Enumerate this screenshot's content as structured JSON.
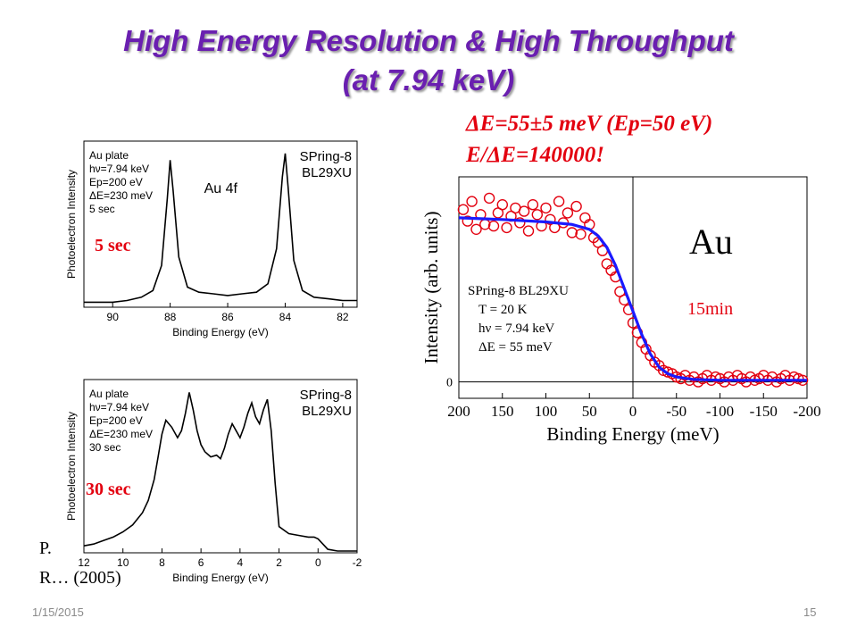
{
  "slide": {
    "title_line1": "High Energy Resolution & High Throughput",
    "title_line2": "(at 7.94 keV)",
    "resolution_line1": "ΔE=55±5 meV (Ep=50 eV)",
    "resolution_line2": "E/ΔE=140000!",
    "date": "1/15/2015",
    "page_number": "15",
    "reference_line1": "P.",
    "reference_line2": "R… (2005)"
  },
  "colors": {
    "title": "#6a1fb0",
    "highlight": "#e3000f",
    "fit_line": "#1a1aff",
    "data_points": "#e3000f"
  },
  "chart_data": [
    {
      "type": "line",
      "panel": "top-left",
      "overlay_label": "5 sec",
      "ylabel": "Photoelectron Intensity",
      "xlabel": "Binding Energy (eV)",
      "annotation_left": [
        "Au plate",
        "hν=7.94 keV",
        "Ep=200 eV",
        "ΔE=230 meV",
        "5 sec"
      ],
      "annotation_right": [
        "SPring-8",
        "BL29XU"
      ],
      "peak_label": "Au 4f",
      "xlim": [
        91,
        81.5
      ],
      "x_ticks": [
        "90",
        "88",
        "86",
        "84",
        "82"
      ],
      "x": [
        91,
        90,
        89.5,
        89,
        88.6,
        88.3,
        88.1,
        88.0,
        87.9,
        87.7,
        87.4,
        87,
        86.5,
        86,
        85.5,
        85,
        84.6,
        84.3,
        84.1,
        84.0,
        83.9,
        83.7,
        83.4,
        83,
        82.5,
        82,
        81.5
      ],
      "values": [
        3,
        3,
        4,
        6,
        10,
        25,
        65,
        88,
        70,
        30,
        12,
        9,
        8,
        7,
        8,
        9,
        14,
        35,
        78,
        92,
        72,
        28,
        10,
        6,
        5,
        4,
        4
      ]
    },
    {
      "type": "line",
      "panel": "bottom-left",
      "overlay_label": "30 sec",
      "ylabel": "Photoelectron Intensity",
      "xlabel": "Binding Energy (eV)",
      "annotation_left": [
        "Au plate",
        "hν=7.94 keV",
        "Ep=200 eV",
        "ΔE=230 meV",
        "30 sec"
      ],
      "annotation_right": [
        "SPring-8",
        "BL29XU"
      ],
      "xlim": [
        12,
        -2
      ],
      "x_ticks": [
        "12",
        "10",
        "8",
        "6",
        "4",
        "2",
        "0",
        "-2"
      ],
      "x": [
        12,
        11.5,
        11,
        10.5,
        10,
        9.5,
        9,
        8.7,
        8.4,
        8.2,
        8,
        7.8,
        7.5,
        7.2,
        7,
        6.8,
        6.6,
        6.4,
        6.2,
        6,
        5.8,
        5.5,
        5.2,
        5,
        4.8,
        4.6,
        4.4,
        4.2,
        4,
        3.8,
        3.6,
        3.4,
        3.2,
        3,
        2.8,
        2.6,
        2.4,
        2.2,
        2,
        1.5,
        1,
        0.5,
        0.2,
        0,
        -0.5,
        -1,
        -1.5,
        -2
      ],
      "values": [
        4,
        5,
        7,
        9,
        12,
        16,
        23,
        30,
        42,
        55,
        68,
        76,
        72,
        66,
        70,
        80,
        92,
        82,
        70,
        62,
        58,
        55,
        56,
        54,
        60,
        68,
        74,
        70,
        66,
        72,
        80,
        86,
        78,
        74,
        82,
        88,
        70,
        40,
        15,
        11,
        10,
        9,
        9,
        8,
        2,
        1,
        1,
        1
      ]
    },
    {
      "type": "scatter",
      "panel": "right",
      "material_label": "Au",
      "time_label": "15min",
      "ylabel": "Intensity (arb. units)",
      "xlabel": "Binding Energy (meV)",
      "annotation": [
        "SPring-8 BL29XU",
        "T = 20 K",
        "hν = 7.94 keV",
        "ΔE = 55 meV"
      ],
      "y_zero_label": "0",
      "xlim": [
        200,
        -200
      ],
      "ylim": [
        -0.1,
        1.25
      ],
      "x_ticks": [
        "200",
        "150",
        "100",
        "50",
        "0",
        "-50",
        "-100",
        "-150",
        "-200"
      ],
      "fit_x": [
        200,
        150,
        100,
        70,
        50,
        40,
        30,
        20,
        10,
        0,
        -10,
        -20,
        -30,
        -40,
        -50,
        -70,
        -100,
        -150,
        -200
      ],
      "fit_y": [
        1.0,
        0.99,
        0.975,
        0.96,
        0.93,
        0.89,
        0.82,
        0.71,
        0.57,
        0.43,
        0.29,
        0.17,
        0.09,
        0.05,
        0.03,
        0.015,
        0.01,
        0.01,
        0.01
      ],
      "points_x": [
        195,
        190,
        185,
        180,
        175,
        170,
        165,
        160,
        155,
        150,
        145,
        140,
        135,
        130,
        125,
        120,
        115,
        110,
        105,
        100,
        95,
        90,
        85,
        80,
        75,
        70,
        65,
        60,
        55,
        50,
        45,
        40,
        35,
        30,
        25,
        20,
        15,
        10,
        5,
        0,
        -5,
        -10,
        -15,
        -20,
        -25,
        -30,
        -35,
        -40,
        -45,
        -50,
        -55,
        -60,
        -65,
        -70,
        -75,
        -80,
        -85,
        -90,
        -95,
        -100,
        -105,
        -110,
        -115,
        -120,
        -125,
        -130,
        -135,
        -140,
        -145,
        -150,
        -155,
        -160,
        -165,
        -170,
        -175,
        -180,
        -185,
        -190,
        -195
      ],
      "points_y": [
        1.05,
        0.98,
        1.1,
        0.93,
        1.02,
        0.96,
        1.12,
        0.95,
        1.03,
        1.08,
        0.94,
        1.01,
        1.06,
        0.97,
        1.04,
        0.92,
        1.08,
        1.02,
        0.95,
        1.06,
        0.99,
        0.94,
        1.1,
        0.97,
        1.03,
        0.91,
        1.07,
        0.9,
        1.0,
        0.96,
        0.88,
        0.85,
        0.8,
        0.72,
        0.68,
        0.64,
        0.55,
        0.5,
        0.44,
        0.36,
        0.3,
        0.24,
        0.2,
        0.16,
        0.12,
        0.1,
        0.07,
        0.06,
        0.05,
        0.03,
        0.02,
        0.04,
        0.01,
        0.03,
        0.0,
        0.02,
        0.04,
        0.01,
        0.03,
        0.02,
        0.0,
        0.03,
        0.01,
        0.04,
        0.02,
        0.0,
        0.03,
        0.01,
        0.02,
        0.04,
        0.01,
        0.03,
        0.0,
        0.02,
        0.04,
        0.01,
        0.03,
        0.02,
        0.01
      ]
    }
  ]
}
